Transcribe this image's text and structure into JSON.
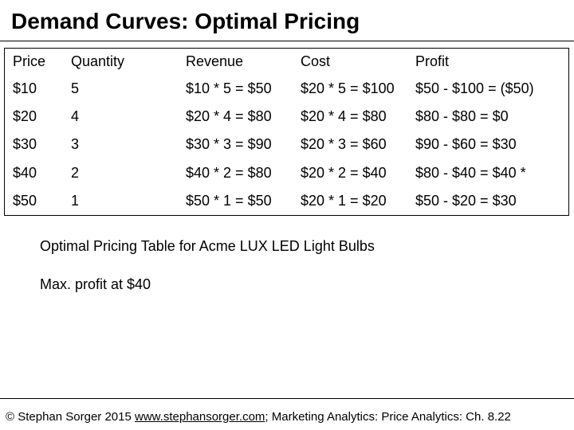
{
  "title": "Demand Curves: Optimal Pricing",
  "table": {
    "headers": [
      "Price",
      "Quantity",
      "Revenue",
      "Cost",
      "Profit"
    ],
    "rows": [
      [
        "$10",
        "5",
        "$10 * 5 = $50",
        "$20 * 5 = $100",
        "$50 - $100 = ($50)"
      ],
      [
        "$20",
        "4",
        "$20 * 4 = $80",
        "$20 * 4 = $80",
        "$80 - $80 = $0"
      ],
      [
        "$30",
        "3",
        "$30 * 3 = $90",
        "$20 * 3 = $60",
        "$90 - $60 = $30"
      ],
      [
        "$40",
        "2",
        "$40 * 2 = $80",
        "$20 * 2 = $40",
        "$80 - $40 = $40 *"
      ],
      [
        "$50",
        "1",
        "$50 * 1 = $50",
        "$20 * 1 = $20",
        "$50 - $20 = $30"
      ]
    ]
  },
  "caption": "Optimal Pricing Table for Acme LUX LED Light Bulbs",
  "note": "Max. profit at $40",
  "footer": {
    "prefix": "© Stephan Sorger 2015 ",
    "link_text": "www.stephansorger.com",
    "suffix": "; Marketing Analytics: Price Analytics: Ch. 8.22"
  }
}
